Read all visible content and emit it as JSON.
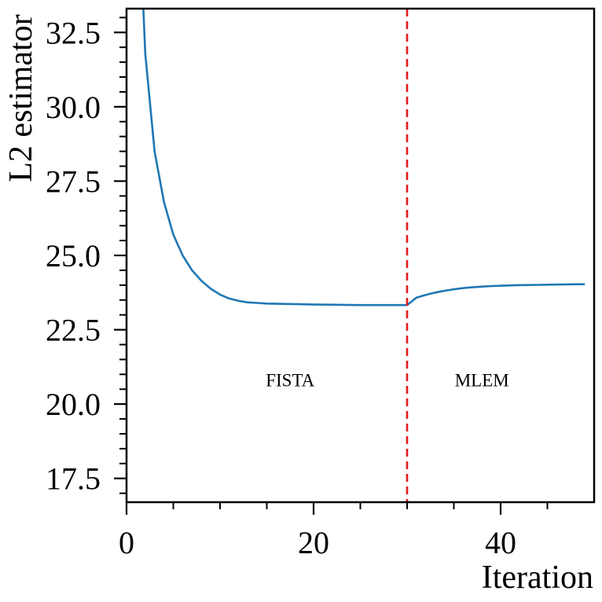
{
  "chart_data": {
    "type": "line",
    "title": "",
    "xlabel": "Iteration",
    "ylabel": "L2 estimator",
    "xlim": [
      0,
      50
    ],
    "ylim": [
      16.7,
      33.3
    ],
    "x_ticks": [
      0,
      20,
      40
    ],
    "x_tick_labels": [
      "0",
      "20",
      "40"
    ],
    "x_minor_ticks": [
      5,
      10,
      15,
      25,
      30,
      35,
      45
    ],
    "y_ticks": [
      17.5,
      20.0,
      22.5,
      25.0,
      27.5,
      30.0,
      32.5
    ],
    "y_tick_labels": [
      "17.5",
      "20.0",
      "22.5",
      "25.0",
      "27.5",
      "30.0",
      "32.5"
    ],
    "y_minor_step": 0.5,
    "grid": false,
    "colors": {
      "line": "#1f77b4",
      "divider": "#e41a1c",
      "axis": "#000000"
    },
    "series": [
      {
        "name": "L2 estimator",
        "x": [
          2,
          3,
          4,
          5,
          6,
          7,
          8,
          9,
          10,
          11,
          12,
          13,
          14,
          15,
          20,
          25,
          30,
          31,
          32,
          33,
          34,
          35,
          36,
          37,
          38,
          39,
          40,
          42,
          44,
          46,
          48,
          49
        ],
        "values": [
          31.8,
          28.5,
          26.8,
          25.7,
          25.0,
          24.5,
          24.15,
          23.88,
          23.68,
          23.55,
          23.47,
          23.42,
          23.4,
          23.38,
          23.35,
          23.33,
          23.33,
          23.58,
          23.67,
          23.75,
          23.81,
          23.86,
          23.9,
          23.93,
          23.95,
          23.97,
          23.98,
          24.0,
          24.01,
          24.02,
          24.03,
          24.03
        ]
      }
    ],
    "vertical_line": {
      "x": 30,
      "style": "dashed"
    },
    "annotations": [
      {
        "text": "FISTA",
        "x": 17.5,
        "y": 20.6
      },
      {
        "text": "MLEM",
        "x": 38.0,
        "y": 20.6
      }
    ]
  }
}
